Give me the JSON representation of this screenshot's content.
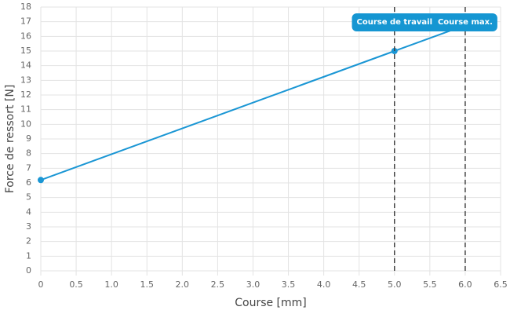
{
  "chart_data": {
    "type": "line",
    "xlabel": "Course [mm]",
    "ylabel": "Force de ressort [N]",
    "x": [
      0,
      5,
      6
    ],
    "series": [
      {
        "color": "#1a96d4",
        "values": [
          6.2,
          15,
          16.76
        ]
      }
    ],
    "xlim": [
      0,
      6.5
    ],
    "xticks": [
      0,
      0.5,
      {
        "value": 1,
        "label": "1.0"
      },
      1.5,
      {
        "value": 2,
        "label": "2.0"
      },
      2.5,
      {
        "value": 3,
        "label": "3.0"
      },
      3.5,
      {
        "value": 4,
        "label": "4.0"
      },
      4.5,
      {
        "value": 5,
        "label": "5.0"
      },
      5.5,
      {
        "value": 6,
        "label": "6.0"
      },
      6.5
    ],
    "ylim": [
      0,
      18
    ],
    "yticks": [
      0,
      1,
      2,
      3,
      4,
      5,
      6,
      7,
      8,
      9,
      10,
      11,
      12,
      13,
      14,
      15,
      16,
      17,
      18
    ],
    "grid": true,
    "vlines": [
      {
        "x": 5,
        "label": "Course de travail"
      },
      {
        "x": 6,
        "label": "Course max."
      }
    ],
    "annotation_color": "#1596d2"
  }
}
